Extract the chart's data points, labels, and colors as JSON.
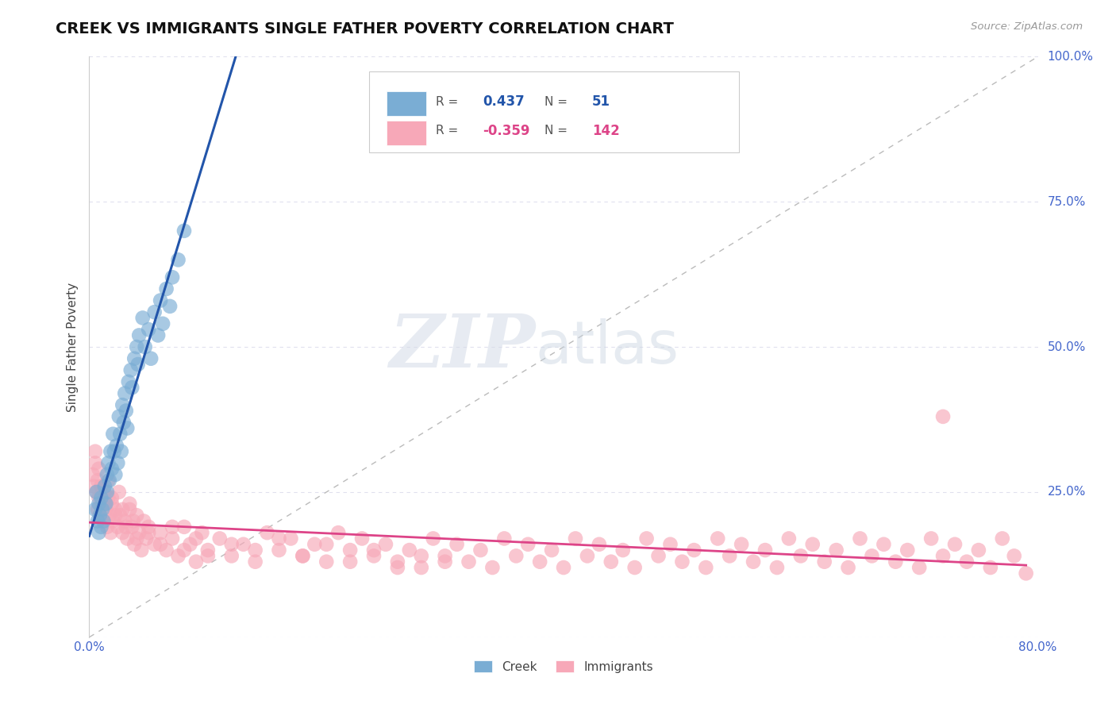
{
  "title": "CREEK VS IMMIGRANTS SINGLE FATHER POVERTY CORRELATION CHART",
  "source_text": "Source: ZipAtlas.com",
  "ylabel": "Single Father Poverty",
  "xlim": [
    0.0,
    0.8
  ],
  "ylim": [
    0.0,
    1.0
  ],
  "creek_R": 0.437,
  "creek_N": 51,
  "immigrants_R": -0.359,
  "immigrants_N": 142,
  "creek_color": "#7aadd4",
  "immigrants_color": "#f7a8b8",
  "creek_line_color": "#2255aa",
  "immigrants_line_color": "#dd4488",
  "ref_line_color": "#bbbbbb",
  "background_color": "#ffffff",
  "grid_color": "#e0e0ee",
  "title_color": "#111111",
  "tick_color": "#4466cc",
  "creek_x": [
    0.005,
    0.006,
    0.007,
    0.008,
    0.008,
    0.009,
    0.01,
    0.01,
    0.011,
    0.012,
    0.013,
    0.014,
    0.015,
    0.015,
    0.016,
    0.017,
    0.018,
    0.019,
    0.02,
    0.021,
    0.022,
    0.023,
    0.024,
    0.025,
    0.026,
    0.027,
    0.028,
    0.029,
    0.03,
    0.031,
    0.032,
    0.033,
    0.035,
    0.036,
    0.038,
    0.04,
    0.041,
    0.042,
    0.045,
    0.047,
    0.05,
    0.052,
    0.055,
    0.058,
    0.06,
    0.062,
    0.065,
    0.068,
    0.07,
    0.075,
    0.08
  ],
  "creek_y": [
    0.22,
    0.25,
    0.2,
    0.23,
    0.18,
    0.21,
    0.24,
    0.19,
    0.22,
    0.2,
    0.26,
    0.23,
    0.28,
    0.25,
    0.3,
    0.27,
    0.32,
    0.29,
    0.35,
    0.32,
    0.28,
    0.33,
    0.3,
    0.38,
    0.35,
    0.32,
    0.4,
    0.37,
    0.42,
    0.39,
    0.36,
    0.44,
    0.46,
    0.43,
    0.48,
    0.5,
    0.47,
    0.52,
    0.55,
    0.5,
    0.53,
    0.48,
    0.56,
    0.52,
    0.58,
    0.54,
    0.6,
    0.57,
    0.62,
    0.65,
    0.7
  ],
  "immigrants_x": [
    0.003,
    0.004,
    0.005,
    0.006,
    0.007,
    0.007,
    0.008,
    0.009,
    0.01,
    0.011,
    0.012,
    0.013,
    0.014,
    0.015,
    0.016,
    0.017,
    0.018,
    0.019,
    0.02,
    0.022,
    0.024,
    0.026,
    0.028,
    0.03,
    0.032,
    0.034,
    0.036,
    0.038,
    0.04,
    0.042,
    0.044,
    0.046,
    0.048,
    0.05,
    0.055,
    0.06,
    0.065,
    0.07,
    0.075,
    0.08,
    0.085,
    0.09,
    0.095,
    0.1,
    0.11,
    0.12,
    0.13,
    0.14,
    0.15,
    0.16,
    0.17,
    0.18,
    0.19,
    0.2,
    0.21,
    0.22,
    0.23,
    0.24,
    0.25,
    0.26,
    0.27,
    0.28,
    0.29,
    0.3,
    0.31,
    0.32,
    0.33,
    0.34,
    0.35,
    0.36,
    0.37,
    0.38,
    0.39,
    0.4,
    0.41,
    0.42,
    0.43,
    0.44,
    0.45,
    0.46,
    0.47,
    0.48,
    0.49,
    0.5,
    0.51,
    0.52,
    0.53,
    0.54,
    0.55,
    0.56,
    0.57,
    0.58,
    0.59,
    0.6,
    0.61,
    0.62,
    0.63,
    0.64,
    0.65,
    0.66,
    0.67,
    0.68,
    0.69,
    0.7,
    0.71,
    0.72,
    0.73,
    0.74,
    0.75,
    0.76,
    0.77,
    0.78,
    0.79,
    0.005,
    0.008,
    0.01,
    0.013,
    0.016,
    0.019,
    0.022,
    0.025,
    0.028,
    0.031,
    0.034,
    0.037,
    0.04,
    0.05,
    0.06,
    0.07,
    0.08,
    0.09,
    0.1,
    0.12,
    0.14,
    0.16,
    0.18,
    0.2,
    0.22,
    0.24,
    0.26,
    0.28,
    0.3
  ],
  "immigrants_y": [
    0.28,
    0.26,
    0.3,
    0.25,
    0.22,
    0.27,
    0.24,
    0.21,
    0.26,
    0.23,
    0.2,
    0.25,
    0.22,
    0.19,
    0.24,
    0.21,
    0.18,
    0.23,
    0.2,
    0.22,
    0.19,
    0.21,
    0.18,
    0.2,
    0.17,
    0.22,
    0.19,
    0.16,
    0.21,
    0.18,
    0.15,
    0.2,
    0.17,
    0.19,
    0.16,
    0.18,
    0.15,
    0.17,
    0.14,
    0.19,
    0.16,
    0.13,
    0.18,
    0.15,
    0.17,
    0.14,
    0.16,
    0.13,
    0.18,
    0.15,
    0.17,
    0.14,
    0.16,
    0.13,
    0.18,
    0.15,
    0.17,
    0.14,
    0.16,
    0.13,
    0.15,
    0.12,
    0.17,
    0.14,
    0.16,
    0.13,
    0.15,
    0.12,
    0.17,
    0.14,
    0.16,
    0.13,
    0.15,
    0.12,
    0.17,
    0.14,
    0.16,
    0.13,
    0.15,
    0.12,
    0.17,
    0.14,
    0.16,
    0.13,
    0.15,
    0.12,
    0.17,
    0.14,
    0.16,
    0.13,
    0.15,
    0.12,
    0.17,
    0.14,
    0.16,
    0.13,
    0.15,
    0.12,
    0.17,
    0.14,
    0.16,
    0.13,
    0.15,
    0.12,
    0.17,
    0.14,
    0.16,
    0.13,
    0.15,
    0.12,
    0.17,
    0.14,
    0.11,
    0.32,
    0.29,
    0.26,
    0.23,
    0.27,
    0.24,
    0.21,
    0.25,
    0.22,
    0.19,
    0.23,
    0.2,
    0.17,
    0.18,
    0.16,
    0.19,
    0.15,
    0.17,
    0.14,
    0.16,
    0.15,
    0.17,
    0.14,
    0.16,
    0.13,
    0.15,
    0.12,
    0.14,
    0.13
  ],
  "outlier_imm_x": [
    0.72
  ],
  "outlier_imm_y": [
    0.38
  ]
}
